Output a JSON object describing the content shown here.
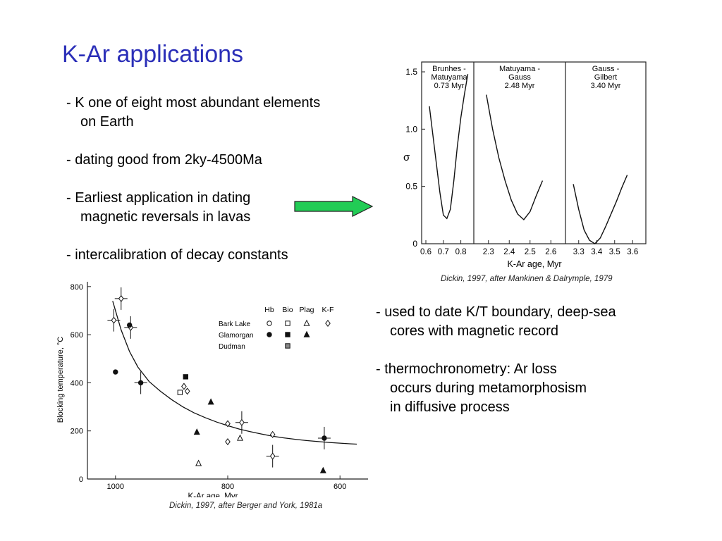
{
  "slide": {
    "title": "K-Ar applications",
    "bullets_left": [
      {
        "line1": "-  K one of eight most abundant elements",
        "line2": "on Earth"
      },
      {
        "line1": "-  dating good from 2ky-4500Ma",
        "line2": ""
      },
      {
        "line1": "-  Earliest application in dating",
        "line2": "magnetic reversals in lavas"
      },
      {
        "line1": "-  intercalibration of decay constants",
        "line2": ""
      }
    ],
    "bullets_right": [
      {
        "line1": "-  used to date K/T boundary, deep-sea",
        "line2": "cores with magnetic record",
        "line3": ""
      },
      {
        "line1": "-  thermochronometry:  Ar loss",
        "line2": "occurs during metamorphosism",
        "line3": "in diffusive process"
      }
    ],
    "arrow_color": "#22cc55",
    "title_color": "#2b2fb8",
    "caption_top": "Dickin, 1997, after Mankinen & Dalrymple, 1979",
    "caption_bottom": "Dickin, 1997, after Berger and York, 1981a"
  },
  "chart_data": [
    {
      "type": "line",
      "ylabel": "σ",
      "xlabel": "K-Ar age, Myr",
      "ylim": [
        0,
        1.5
      ],
      "yticks": [
        "0",
        "0.5",
        "1.0",
        "1.5"
      ],
      "panels": [
        {
          "label": "Brunhes - Matuyama 0.73 Myr",
          "label_lines": [
            "Brunhes -",
            "Matuyama",
            "0.73 Myr"
          ],
          "xlim": [
            0.6,
            0.85
          ],
          "xticks": [
            "0.6",
            "0.7",
            "0.8"
          ],
          "x": [
            0.62,
            0.64,
            0.66,
            0.68,
            0.7,
            0.72,
            0.74,
            0.76,
            0.78,
            0.8,
            0.82,
            0.84
          ],
          "y": [
            1.2,
            0.95,
            0.7,
            0.45,
            0.25,
            0.22,
            0.3,
            0.55,
            0.85,
            1.1,
            1.3,
            1.48
          ]
        },
        {
          "label": "Matuyama - Gauss 2.48 Myr",
          "label_lines": [
            "Matuyama -",
            "Gauss",
            "2.48 Myr"
          ],
          "xlim": [
            2.25,
            2.65
          ],
          "xticks": [
            "2.3",
            "2.4",
            "2.5",
            "2.6"
          ],
          "x": [
            2.29,
            2.32,
            2.35,
            2.38,
            2.41,
            2.44,
            2.47,
            2.5,
            2.53,
            2.56
          ],
          "y": [
            1.3,
            1.0,
            0.75,
            0.55,
            0.38,
            0.26,
            0.21,
            0.28,
            0.42,
            0.55
          ]
        },
        {
          "label": "Gauss - Gilbert 3.40 Myr",
          "label_lines": [
            "Gauss -",
            "Gilbert",
            "3.40 Myr"
          ],
          "xlim": [
            3.25,
            3.65
          ],
          "xticks": [
            "3.3",
            "3.4",
            "3.5",
            "3.6"
          ],
          "x": [
            3.27,
            3.3,
            3.33,
            3.36,
            3.39,
            3.42,
            3.45,
            3.48,
            3.51,
            3.54,
            3.57
          ],
          "y": [
            0.52,
            0.3,
            0.12,
            0.03,
            0.0,
            0.05,
            0.15,
            0.26,
            0.37,
            0.49,
            0.6
          ]
        }
      ]
    },
    {
      "type": "scatter",
      "xlabel": "K-Ar age, Myr",
      "ylabel": "Blocking temperature, °C",
      "xlim": [
        1050,
        550
      ],
      "ylim": [
        0,
        820
      ],
      "xticks": [
        1000,
        800,
        600
      ],
      "yticks": [
        0,
        200,
        400,
        600,
        800
      ],
      "legend": {
        "placement": "top-right",
        "columns": [
          "Hb",
          "Bio",
          "Plag",
          "K-F"
        ],
        "rows": [
          {
            "name": "Bark Lake",
            "marks": [
              "open-circle",
              "open-square",
              "open-triangle",
              "open-diamond"
            ]
          },
          {
            "name": "Glamorgan",
            "marks": [
              "filled-circle",
              "filled-square",
              "filled-triangle",
              ""
            ]
          },
          {
            "name": "Dudman",
            "marks": [
              "",
              "hatched-square",
              "",
              ""
            ]
          }
        ]
      },
      "curve": {
        "x": [
          1005,
          990,
          975,
          960,
          940,
          920,
          900,
          880,
          860,
          840,
          820,
          800,
          780,
          760,
          740,
          720,
          700,
          680,
          660,
          640,
          620,
          600,
          580,
          570
        ],
        "y": [
          740,
          620,
          530,
          465,
          405,
          365,
          330,
          300,
          275,
          255,
          237,
          222,
          208,
          197,
          187,
          178,
          171,
          165,
          160,
          156,
          152,
          149,
          146,
          145
        ]
      },
      "points": [
        {
          "x": 1003,
          "y": 660,
          "marker": "open-diamond",
          "err": true
        },
        {
          "x": 990,
          "y": 750,
          "marker": "open-diamond",
          "err": true
        },
        {
          "x": 973,
          "y": 630,
          "marker": "open-diamond",
          "err": true
        },
        {
          "x": 975,
          "y": 640,
          "marker": "filled-circle"
        },
        {
          "x": 1000,
          "y": 445,
          "marker": "filled-circle"
        },
        {
          "x": 955,
          "y": 400,
          "marker": "filled-circle",
          "err": true
        },
        {
          "x": 885,
          "y": 360,
          "marker": "open-square"
        },
        {
          "x": 878,
          "y": 385,
          "marker": "open-diamond"
        },
        {
          "x": 872,
          "y": 365,
          "marker": "open-diamond"
        },
        {
          "x": 875,
          "y": 425,
          "marker": "filled-square"
        },
        {
          "x": 830,
          "y": 320,
          "marker": "filled-triangle"
        },
        {
          "x": 855,
          "y": 195,
          "marker": "filled-triangle"
        },
        {
          "x": 852,
          "y": 65,
          "marker": "open-triangle"
        },
        {
          "x": 800,
          "y": 230,
          "marker": "open-diamond"
        },
        {
          "x": 775,
          "y": 235,
          "marker": "open-diamond",
          "err": true
        },
        {
          "x": 800,
          "y": 155,
          "marker": "open-diamond"
        },
        {
          "x": 778,
          "y": 170,
          "marker": "open-triangle"
        },
        {
          "x": 720,
          "y": 185,
          "marker": "open-diamond"
        },
        {
          "x": 720,
          "y": 95,
          "marker": "open-diamond",
          "err": true
        },
        {
          "x": 628,
          "y": 170,
          "marker": "filled-circle",
          "err": true
        },
        {
          "x": 630,
          "y": 35,
          "marker": "filled-triangle"
        }
      ]
    }
  ]
}
